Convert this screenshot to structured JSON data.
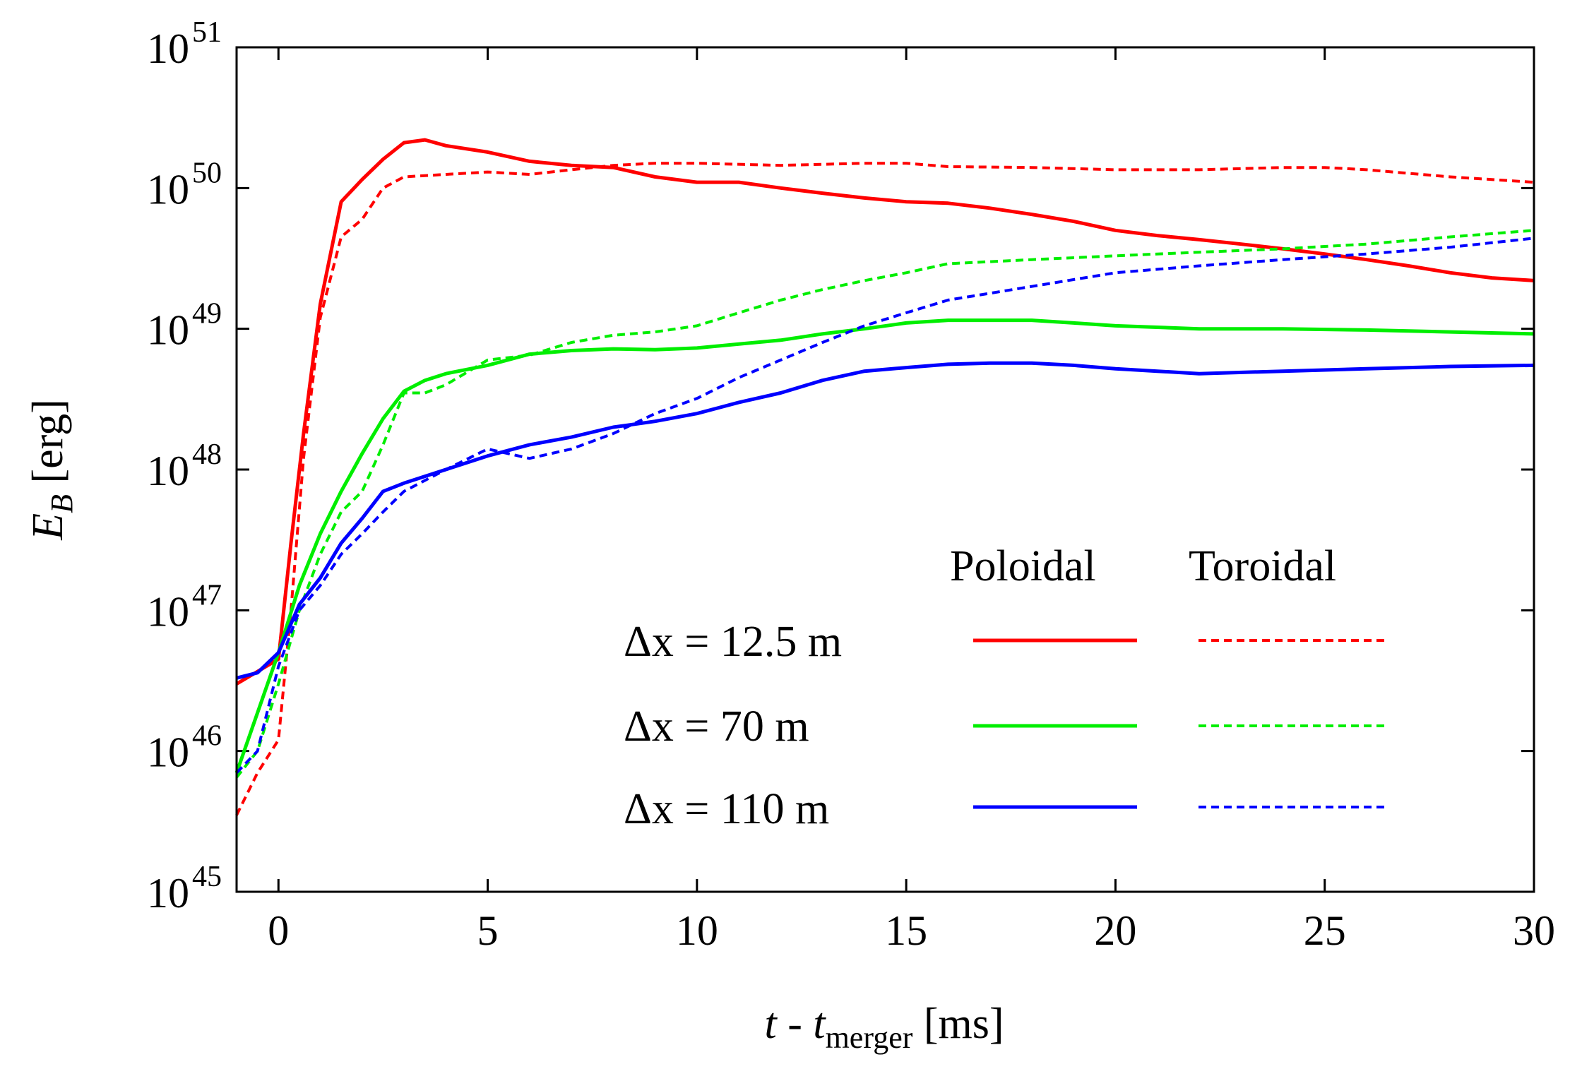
{
  "chart_data": {
    "type": "line",
    "title": "",
    "xlabel": "t - t_merger [ms]",
    "ylabel": "E_B [erg]",
    "xlim": [
      -1,
      30
    ],
    "ylim": [
      1e+45,
      1e+51
    ],
    "y_scale": "log",
    "grid": false,
    "x_ticks": [
      0,
      5,
      10,
      15,
      20,
      25,
      30
    ],
    "y_ticks": [
      45,
      46,
      47,
      48,
      49,
      50,
      51
    ],
    "y_tick_base": "10",
    "legend_placement": "lower-right",
    "legend": {
      "header_solid": "Poloidal",
      "header_dashed": "Toroidal",
      "rows": [
        {
          "label": "Δx = 12.5 m",
          "color": "#ff0000"
        },
        {
          "label": "Δx = 70 m",
          "color": "#00ee00"
        },
        {
          "label": "Δx = 110 m",
          "color": "#0000ff"
        }
      ]
    },
    "series": [
      {
        "resolution": "Δx = 12.5 m",
        "component": "Poloidal",
        "color": "#ff0000",
        "dash": false,
        "x": [
          -1,
          0,
          0.3,
          0.6,
          1,
          1.5,
          2,
          2.5,
          3,
          3.5,
          4,
          5,
          6,
          7,
          8,
          9,
          10,
          11,
          12,
          13,
          14,
          15,
          16,
          17,
          18,
          19,
          20,
          21,
          22,
          23,
          24,
          25,
          26,
          27,
          28,
          29,
          30
        ],
        "y": [
          3e+46,
          4.5e+46,
          3e+47,
          1.8e+48,
          1.5e+49,
          8e+49,
          1.15e+50,
          1.6e+50,
          2.1e+50,
          2.2e+50,
          2e+50,
          1.8e+50,
          1.55e+50,
          1.45e+50,
          1.4e+50,
          1.2e+50,
          1.1e+50,
          1.1e+50,
          1e+50,
          9.2e+49,
          8.5e+49,
          8e+49,
          7.8e+49,
          7.2e+49,
          6.5e+49,
          5.8e+49,
          5e+49,
          4.6e+49,
          4.3e+49,
          4e+49,
          3.7e+49,
          3.4e+49,
          3.1e+49,
          2.8e+49,
          2.5e+49,
          2.3e+49,
          2.2e+49
        ]
      },
      {
        "resolution": "Δx = 12.5 m",
        "component": "Toroidal",
        "color": "#ff0000",
        "dash": true,
        "x": [
          -1,
          -0.5,
          0,
          0.3,
          0.6,
          1,
          1.5,
          2,
          2.5,
          3,
          4,
          5,
          6,
          7,
          8,
          9,
          10,
          12,
          14,
          15,
          16,
          18,
          20,
          22,
          24,
          25,
          26,
          28,
          30
        ],
        "y": [
          3.5e+45,
          7e+45,
          1.2e+46,
          1e+47,
          1.2e+48,
          1.2e+49,
          4.5e+49,
          6e+49,
          1e+50,
          1.2e+50,
          1.25e+50,
          1.3e+50,
          1.25e+50,
          1.35e+50,
          1.45e+50,
          1.5e+50,
          1.5e+50,
          1.45e+50,
          1.5e+50,
          1.5e+50,
          1.42e+50,
          1.4e+50,
          1.35e+50,
          1.35e+50,
          1.4e+50,
          1.4e+50,
          1.35e+50,
          1.2e+50,
          1.1e+50
        ]
      },
      {
        "resolution": "Δx = 70 m",
        "component": "Poloidal",
        "color": "#00ee00",
        "dash": false,
        "x": [
          -1,
          0,
          0.5,
          1,
          1.5,
          2,
          2.5,
          3,
          3.5,
          4,
          5,
          6,
          7,
          8,
          9,
          10,
          11,
          12,
          13,
          14,
          15,
          16,
          17,
          18,
          19,
          20,
          22,
          24,
          26,
          28,
          30
        ],
        "y": [
          7e+45,
          5e+46,
          1.5e+47,
          3.5e+47,
          7e+47,
          1.3e+48,
          2.3e+48,
          3.6e+48,
          4.3e+48,
          4.8e+48,
          5.5e+48,
          6.6e+48,
          7e+48,
          7.2e+48,
          7.1e+48,
          7.3e+48,
          7.8e+48,
          8.3e+48,
          9.2e+48,
          1e+49,
          1.1e+49,
          1.15e+49,
          1.15e+49,
          1.15e+49,
          1.1e+49,
          1.05e+49,
          1e+49,
          1e+49,
          9.8e+48,
          9.5e+48,
          9.2e+48
        ]
      },
      {
        "resolution": "Δx = 70 m",
        "component": "Toroidal",
        "color": "#00ee00",
        "dash": true,
        "x": [
          -1,
          -0.5,
          0,
          0.5,
          1,
          1.5,
          2,
          2.5,
          3,
          3.5,
          4,
          5,
          6,
          7,
          8,
          9,
          10,
          11,
          12,
          13,
          14,
          15,
          16,
          17,
          18,
          20,
          22,
          24,
          26,
          28,
          30
        ],
        "y": [
          6.5e+45,
          1e+46,
          3e+46,
          1e+47,
          2.5e+47,
          5e+47,
          7e+47,
          1.5e+48,
          3.5e+48,
          3.5e+48,
          4e+48,
          6e+48,
          6.5e+48,
          8e+48,
          9e+48,
          9.5e+48,
          1.05e+49,
          1.3e+49,
          1.6e+49,
          1.9e+49,
          2.2e+49,
          2.5e+49,
          2.9e+49,
          3e+49,
          3.1e+49,
          3.3e+49,
          3.5e+49,
          3.7e+49,
          4e+49,
          4.5e+49,
          5e+49
        ]
      },
      {
        "resolution": "Δx = 110 m",
        "component": "Poloidal",
        "color": "#0000ff",
        "dash": false,
        "x": [
          -1,
          -0.5,
          0,
          0.5,
          1,
          1.5,
          2,
          2.5,
          3,
          4,
          5,
          6,
          7,
          8,
          9,
          10,
          11,
          12,
          13,
          14,
          15,
          16,
          17,
          18,
          19,
          20,
          21,
          22,
          24,
          26,
          28,
          30
        ],
        "y": [
          3.3e+46,
          3.6e+46,
          5e+46,
          1.1e+47,
          1.7e+47,
          3e+47,
          4.5e+47,
          7e+47,
          8e+47,
          1e+48,
          1.25e+48,
          1.5e+48,
          1.7e+48,
          2e+48,
          2.2e+48,
          2.5e+48,
          3e+48,
          3.5e+48,
          4.3e+48,
          5e+48,
          5.3e+48,
          5.6e+48,
          5.7e+48,
          5.7e+48,
          5.5e+48,
          5.2e+48,
          5e+48,
          4.8e+48,
          5e+48,
          5.2e+48,
          5.4e+48,
          5.5e+48
        ]
      },
      {
        "resolution": "Δx = 110 m",
        "component": "Toroidal",
        "color": "#0000ff",
        "dash": true,
        "x": [
          -1,
          -0.5,
          0,
          0.5,
          1,
          1.5,
          2,
          2.5,
          3,
          4,
          5,
          6,
          7,
          8,
          9,
          10,
          11,
          12,
          13,
          14,
          15,
          16,
          18,
          20,
          22,
          24,
          26,
          28,
          30
        ],
        "y": [
          7e+45,
          1e+46,
          4e+46,
          1e+47,
          1.5e+47,
          2.5e+47,
          3.5e+47,
          5e+47,
          7e+47,
          1e+48,
          1.4e+48,
          1.2e+48,
          1.4e+48,
          1.8e+48,
          2.5e+48,
          3.2e+48,
          4.5e+48,
          6e+48,
          8e+48,
          1.05e+49,
          1.3e+49,
          1.6e+49,
          2e+49,
          2.5e+49,
          2.8e+49,
          3.1e+49,
          3.4e+49,
          3.8e+49,
          4.4e+49
        ]
      }
    ]
  }
}
